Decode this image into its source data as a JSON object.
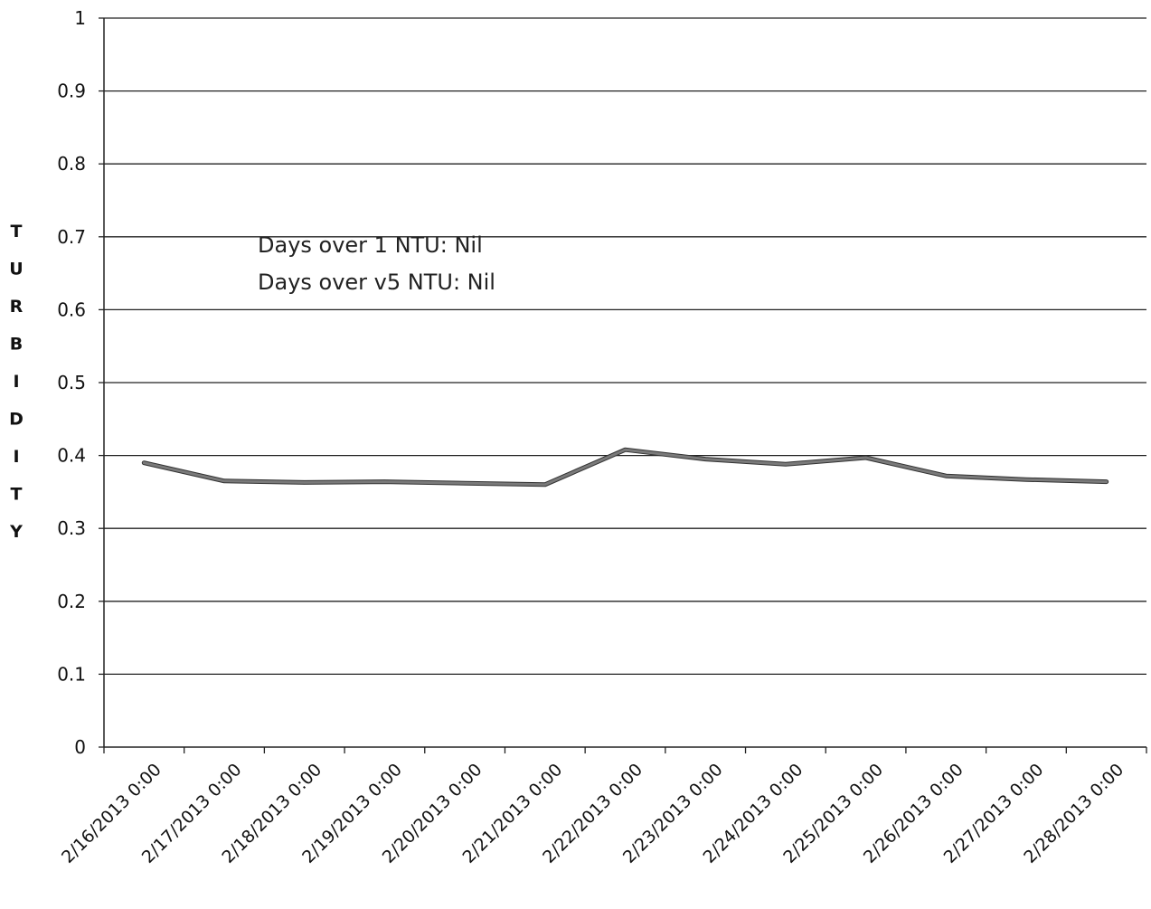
{
  "chart_data": {
    "type": "line",
    "title": "",
    "xlabel": "",
    "ylabel": "TURBIDITY",
    "ylim": [
      0,
      1
    ],
    "y_ticks": [
      "0",
      "0.1",
      "0.2",
      "0.3",
      "0.4",
      "0.5",
      "0.6",
      "0.7",
      "0.8",
      "0.9",
      "1"
    ],
    "grid": "horizontal",
    "legend": "none",
    "categories": [
      "2/16/2013 0:00",
      "2/17/2013 0:00",
      "2/18/2013 0:00",
      "2/19/2013 0:00",
      "2/20/2013 0:00",
      "2/21/2013 0:00",
      "2/22/2013 0:00",
      "2/23/2013 0:00",
      "2/24/2013 0:00",
      "2/25/2013 0:00",
      "2/26/2013 0:00",
      "2/27/2013 0:00",
      "2/28/2013 0:00"
    ],
    "series": [
      {
        "values": [
          0.39,
          0.365,
          0.363,
          0.364,
          0.362,
          0.36,
          0.408,
          0.395,
          0.388,
          0.397,
          0.372,
          0.367,
          0.364
        ],
        "color": "#7a7a7a"
      }
    ],
    "annotations": [
      "Days over 1 NTU: Nil",
      "Days over v5 NTU: Nil"
    ]
  }
}
